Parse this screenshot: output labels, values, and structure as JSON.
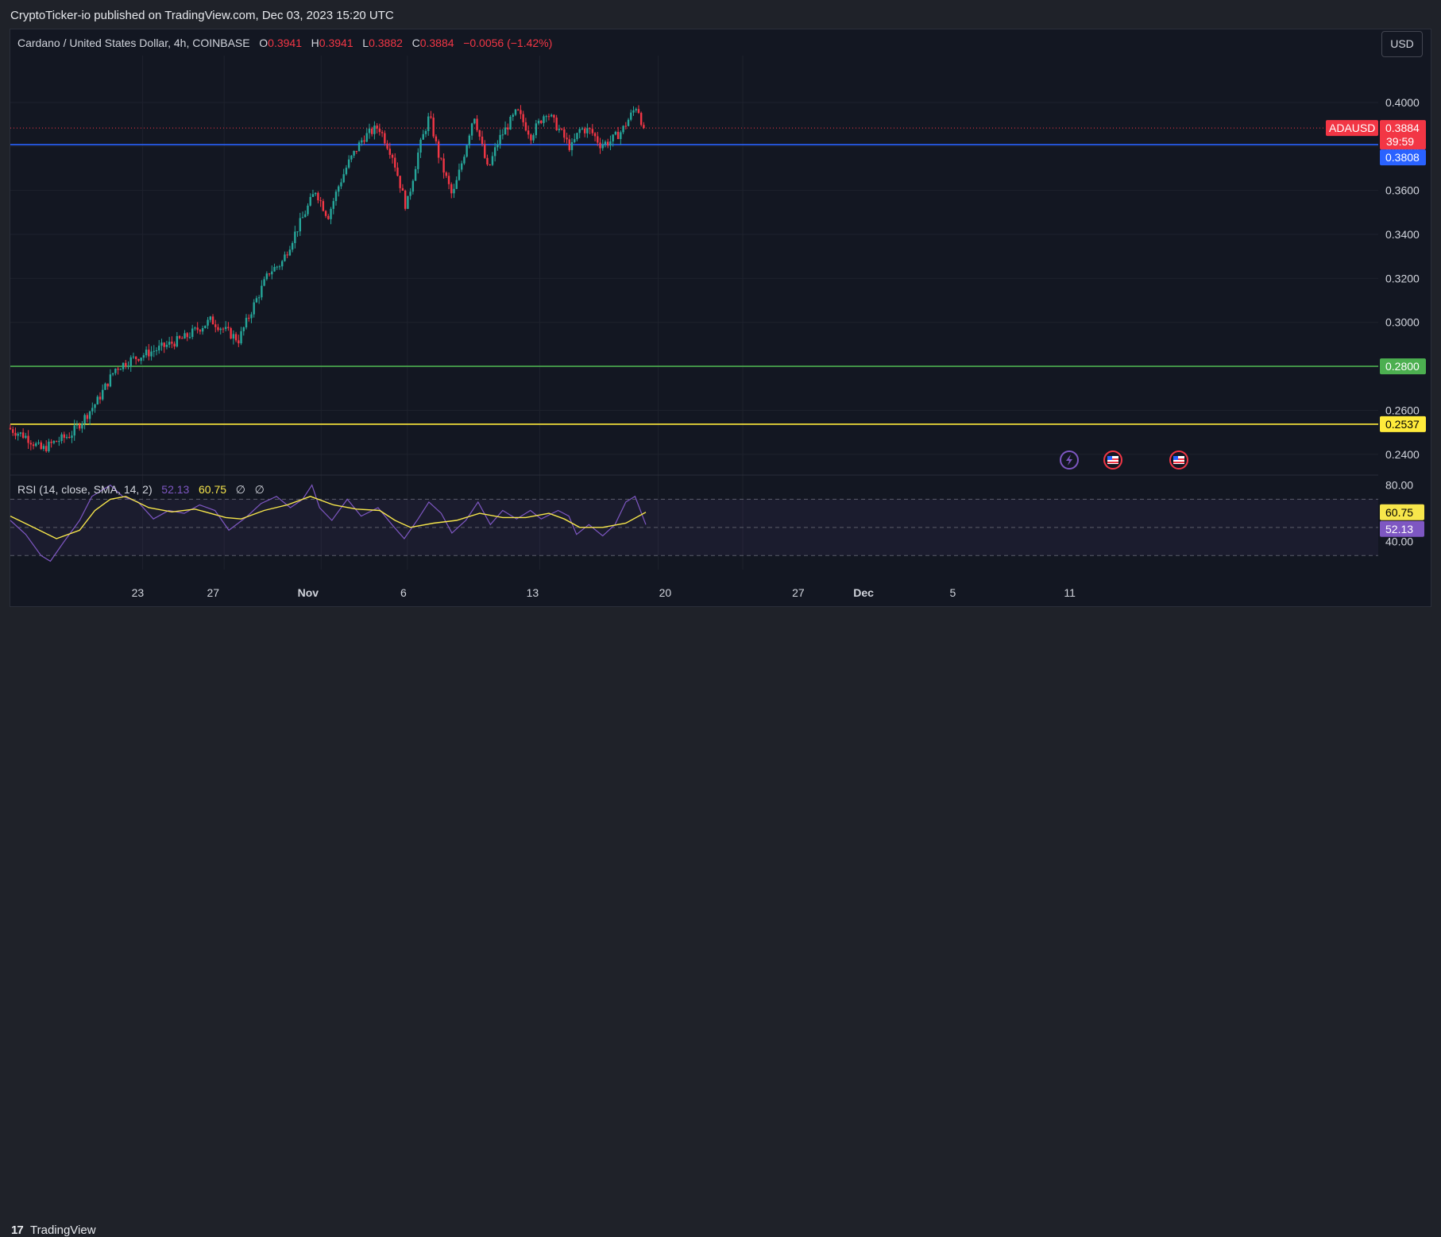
{
  "header": {
    "published": "CryptoTicker-io published on TradingView.com, Dec 03, 2023 15:20 UTC"
  },
  "legend": {
    "symbol": "Cardano / United States Dollar, 4h, COINBASE",
    "o_label": "O",
    "o": "0.3941",
    "h_label": "H",
    "h": "0.3941",
    "l_label": "L",
    "l": "0.3882",
    "c_label": "C",
    "c": "0.3884",
    "change": "−0.0056 (−1.42%)"
  },
  "currency_button": "USD",
  "rsi_legend": {
    "label": "RSI (14, close, SMA, 14, 2)",
    "rsi": "52.13",
    "ma": "60.75",
    "s1": "∅",
    "s2": "∅"
  },
  "footer": {
    "brand": "TradingView",
    "logo_mark": "17"
  },
  "colors": {
    "background": "#131722",
    "grid": "#1e222d",
    "up": "#26a69a",
    "down": "#f23645",
    "blue_line": "#2962ff",
    "green_line": "#4caf50",
    "yellow_line": "#ffeb3b",
    "rsi_line": "#7e57c2",
    "rsi_ma": "#f7e64b"
  },
  "event_icons": [
    "lightning-icon",
    "us-flag-icon",
    "us-flag-icon"
  ],
  "chart_data": {
    "type": "candlestick",
    "symbol": "ADAUSD",
    "interval": "4h",
    "price_axis": {
      "ticks": [
        "0.4000",
        "0.3800",
        "0.3600",
        "0.3400",
        "0.3200",
        "0.3000",
        "0.2800",
        "0.2600",
        "0.2400"
      ],
      "ylim": [
        0.2309,
        0.4213
      ]
    },
    "x_axis": {
      "ticks": [
        "23",
        "27",
        "Nov",
        "6",
        "13",
        "20",
        "27",
        "Dec",
        "5",
        "11"
      ]
    },
    "price_path": [
      [
        0.0,
        0.252
      ],
      [
        1.2,
        0.248
      ],
      [
        2.2,
        0.242
      ],
      [
        2.9,
        0.245
      ],
      [
        4.1,
        0.249
      ],
      [
        4.8,
        0.255
      ],
      [
        5.8,
        0.264
      ],
      [
        7.0,
        0.279
      ],
      [
        8.0,
        0.283
      ],
      [
        9.8,
        0.288
      ],
      [
        11.5,
        0.293
      ],
      [
        13.2,
        0.301
      ],
      [
        15.0,
        0.292
      ],
      [
        16.0,
        0.308
      ],
      [
        17.0,
        0.323
      ],
      [
        17.8,
        0.327
      ],
      [
        18.7,
        0.341
      ],
      [
        19.2,
        0.348
      ],
      [
        20.0,
        0.36
      ],
      [
        20.8,
        0.348
      ],
      [
        21.5,
        0.362
      ],
      [
        22.1,
        0.372
      ],
      [
        23.1,
        0.384
      ],
      [
        24.1,
        0.389
      ],
      [
        25.0,
        0.376
      ],
      [
        25.9,
        0.352
      ],
      [
        26.7,
        0.378
      ],
      [
        27.4,
        0.394
      ],
      [
        28.0,
        0.376
      ],
      [
        28.9,
        0.357
      ],
      [
        29.6,
        0.375
      ],
      [
        30.3,
        0.395
      ],
      [
        31.2,
        0.369
      ],
      [
        31.9,
        0.383
      ],
      [
        33.1,
        0.396
      ],
      [
        34.0,
        0.385
      ],
      [
        35.0,
        0.396
      ],
      [
        35.9,
        0.387
      ],
      [
        36.6,
        0.379
      ],
      [
        37.2,
        0.388
      ],
      [
        37.9,
        0.387
      ],
      [
        38.5,
        0.381
      ],
      [
        39.1,
        0.382
      ],
      [
        39.9,
        0.387
      ],
      [
        40.4,
        0.393
      ],
      [
        40.9,
        0.399
      ],
      [
        41.3,
        0.3884
      ]
    ],
    "levels": [
      {
        "name": "ADAUSD",
        "value": 0.3884,
        "label": "0.3884",
        "countdown": "39:59",
        "style": "dotted"
      },
      {
        "value": 0.3808,
        "label": "0.3808"
      },
      {
        "value": 0.28,
        "label": "0.2800"
      },
      {
        "value": 0.2537,
        "label": "0.2537"
      }
    ],
    "rsi": {
      "params": "RSI (14, close, SMA, 14, 2)",
      "ticks": [
        "80.00",
        "40.00"
      ],
      "ylim": [
        20,
        86
      ],
      "bands": [
        70,
        50,
        30
      ],
      "last_rsi": 52.13,
      "last_ma": 60.75,
      "rsi_path": [
        [
          0.0,
          55
        ],
        [
          1.0,
          45
        ],
        [
          2.0,
          30
        ],
        [
          2.6,
          26
        ],
        [
          3.5,
          40
        ],
        [
          4.5,
          55
        ],
        [
          5.3,
          72
        ],
        [
          6.5,
          80
        ],
        [
          7.3,
          72
        ],
        [
          8.3,
          68
        ],
        [
          9.3,
          56
        ],
        [
          10.3,
          62
        ],
        [
          11.3,
          60
        ],
        [
          12.3,
          66
        ],
        [
          13.3,
          62
        ],
        [
          14.2,
          48
        ],
        [
          15.3,
          57
        ],
        [
          16.3,
          67
        ],
        [
          17.3,
          72
        ],
        [
          18.2,
          64
        ],
        [
          19.0,
          70
        ],
        [
          19.6,
          80
        ],
        [
          20.1,
          64
        ],
        [
          20.9,
          55
        ],
        [
          21.9,
          70
        ],
        [
          22.8,
          58
        ],
        [
          23.9,
          64
        ],
        [
          24.8,
          52
        ],
        [
          25.6,
          42
        ],
        [
          26.5,
          56
        ],
        [
          27.2,
          68
        ],
        [
          28.0,
          60
        ],
        [
          28.7,
          46
        ],
        [
          29.6,
          55
        ],
        [
          30.4,
          68
        ],
        [
          31.2,
          52
        ],
        [
          32.0,
          62
        ],
        [
          32.9,
          56
        ],
        [
          33.8,
          62
        ],
        [
          34.5,
          56
        ],
        [
          35.6,
          62
        ],
        [
          36.3,
          58
        ],
        [
          36.8,
          45
        ],
        [
          37.6,
          52
        ],
        [
          38.5,
          44
        ],
        [
          39.3,
          52
        ],
        [
          40.0,
          68
        ],
        [
          40.6,
          72
        ],
        [
          41.3,
          52
        ]
      ],
      "ma_path": [
        [
          0.0,
          58
        ],
        [
          1.5,
          50
        ],
        [
          3.0,
          42
        ],
        [
          4.5,
          48
        ],
        [
          5.5,
          62
        ],
        [
          6.5,
          70
        ],
        [
          7.5,
          72
        ],
        [
          9.0,
          64
        ],
        [
          10.5,
          61
        ],
        [
          12.0,
          63
        ],
        [
          14.0,
          57
        ],
        [
          15.0,
          56
        ],
        [
          16.5,
          62
        ],
        [
          18.0,
          66
        ],
        [
          19.5,
          72
        ],
        [
          21.0,
          66
        ],
        [
          22.5,
          63
        ],
        [
          24.0,
          62
        ],
        [
          25.0,
          55
        ],
        [
          26.0,
          50
        ],
        [
          27.5,
          53
        ],
        [
          29.0,
          55
        ],
        [
          30.5,
          60
        ],
        [
          32.0,
          57
        ],
        [
          33.5,
          57
        ],
        [
          35.0,
          60
        ],
        [
          36.0,
          56
        ],
        [
          37.0,
          50
        ],
        [
          38.5,
          50
        ],
        [
          40.0,
          53
        ],
        [
          41.3,
          60.75
        ]
      ]
    }
  }
}
